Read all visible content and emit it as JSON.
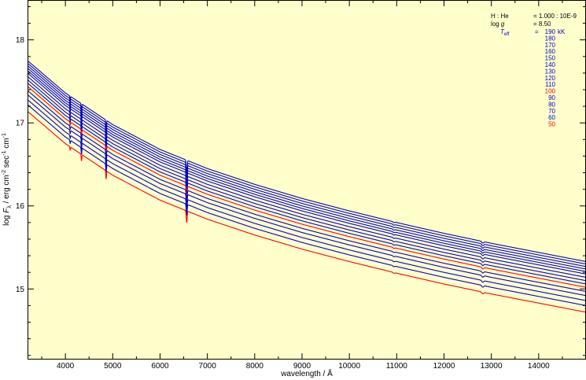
{
  "chart_data": {
    "type": "line",
    "title": "",
    "xlabel": "wavelength / Å",
    "ylabel_parts": [
      "log ",
      "F",
      "λ",
      " / erg cm",
      "-2",
      " sec",
      "-1",
      " cm",
      "-1"
    ],
    "xlim": [
      3200,
      15000
    ],
    "ylim": [
      14.15,
      18.48
    ],
    "xticks": [
      4000,
      5000,
      6000,
      7000,
      8000,
      9000,
      10000,
      11000,
      12000,
      13000,
      14000
    ],
    "yticks": [
      15,
      16,
      17,
      18
    ],
    "x_minor_step": 500,
    "y_minor_step": 0.2,
    "grid": false,
    "legend_position": "top-right",
    "colors": {
      "background": "#ffffcc",
      "blue": "#0000cc",
      "red": "#ff0000"
    },
    "info_rows": [
      {
        "label": "H : He",
        "value": "= 1.000 : 10E-9"
      },
      {
        "label": "log g",
        "value": "= 8.50"
      }
    ],
    "teff_label": "T",
    "teff_sub": "eff",
    "teff_eq": "=",
    "unit": "kK",
    "x": [
      3200,
      4000,
      5000,
      6000,
      7000,
      8000,
      9000,
      10000,
      11000,
      12000,
      13000,
      14000,
      15000
    ],
    "series": [
      {
        "name": "190",
        "color": "blue",
        "values": [
          17.75,
          17.36,
          16.98,
          16.68,
          16.45,
          16.26,
          16.09,
          15.94,
          15.8,
          15.67,
          15.55,
          15.44,
          15.33
        ]
      },
      {
        "name": "180",
        "color": "blue",
        "values": [
          17.72,
          17.33,
          16.95,
          16.65,
          16.42,
          16.23,
          16.06,
          15.91,
          15.77,
          15.64,
          15.52,
          15.41,
          15.3
        ]
      },
      {
        "name": "170",
        "color": "blue",
        "values": [
          17.69,
          17.3,
          16.92,
          16.62,
          16.39,
          16.2,
          16.03,
          15.88,
          15.74,
          15.61,
          15.49,
          15.38,
          15.27
        ]
      },
      {
        "name": "160",
        "color": "blue",
        "values": [
          17.66,
          17.27,
          16.89,
          16.59,
          16.36,
          16.17,
          16.0,
          15.85,
          15.71,
          15.58,
          15.46,
          15.35,
          15.24
        ]
      },
      {
        "name": "150",
        "color": "blue",
        "values": [
          17.63,
          17.24,
          16.86,
          16.56,
          16.33,
          16.14,
          15.97,
          15.82,
          15.68,
          15.55,
          15.43,
          15.32,
          15.21
        ]
      },
      {
        "name": "140",
        "color": "blue",
        "values": [
          17.6,
          17.21,
          16.83,
          16.53,
          16.3,
          16.11,
          15.94,
          15.79,
          15.65,
          15.52,
          15.4,
          15.29,
          15.18
        ]
      },
      {
        "name": "130",
        "color": "blue",
        "values": [
          17.56,
          17.17,
          16.79,
          16.49,
          16.26,
          16.07,
          15.9,
          15.75,
          15.61,
          15.48,
          15.36,
          15.25,
          15.14
        ]
      },
      {
        "name": "120",
        "color": "blue",
        "values": [
          17.52,
          17.13,
          16.75,
          16.45,
          16.22,
          16.03,
          15.86,
          15.71,
          15.57,
          15.44,
          15.32,
          15.21,
          15.1
        ]
      },
      {
        "name": "110",
        "color": "blue",
        "values": [
          17.48,
          17.09,
          16.71,
          16.41,
          16.18,
          15.99,
          15.82,
          15.67,
          15.53,
          15.4,
          15.28,
          15.17,
          15.06
        ]
      },
      {
        "name": "100",
        "color": "red",
        "values": [
          17.44,
          17.05,
          16.67,
          16.37,
          16.14,
          15.95,
          15.78,
          15.63,
          15.49,
          15.36,
          15.24,
          15.13,
          15.02
        ]
      },
      {
        "name": "90",
        "color": "blue",
        "values": [
          17.39,
          17.0,
          16.62,
          16.32,
          16.09,
          15.9,
          15.73,
          15.58,
          15.44,
          15.31,
          15.19,
          15.08,
          14.97
        ]
      },
      {
        "name": "80",
        "color": "blue",
        "values": [
          17.34,
          16.95,
          16.57,
          16.27,
          16.04,
          15.85,
          15.68,
          15.53,
          15.39,
          15.26,
          15.14,
          15.03,
          14.92
        ]
      },
      {
        "name": "70",
        "color": "blue",
        "values": [
          17.28,
          16.89,
          16.51,
          16.21,
          15.98,
          15.79,
          15.62,
          15.47,
          15.33,
          15.2,
          15.08,
          14.97,
          14.86
        ]
      },
      {
        "name": "60",
        "color": "blue",
        "values": [
          17.22,
          16.83,
          16.45,
          16.15,
          15.92,
          15.73,
          15.56,
          15.41,
          15.27,
          15.14,
          15.02,
          14.91,
          14.8
        ]
      },
      {
        "name": "50",
        "color": "red",
        "values": [
          17.14,
          16.75,
          16.37,
          16.07,
          15.84,
          15.65,
          15.48,
          15.33,
          15.19,
          15.06,
          14.94,
          14.83,
          14.72
        ]
      }
    ],
    "absorption_lines": [
      {
        "x": 4101,
        "depth": 0.04
      },
      {
        "x": 4340,
        "depth": 0.08
      },
      {
        "x": 4861,
        "depth": 0.1
      },
      {
        "x": 6563,
        "depth": 0.14
      },
      {
        "x": 10940,
        "depth": 0.01
      },
      {
        "x": 12818,
        "depth": 0.02
      }
    ]
  }
}
